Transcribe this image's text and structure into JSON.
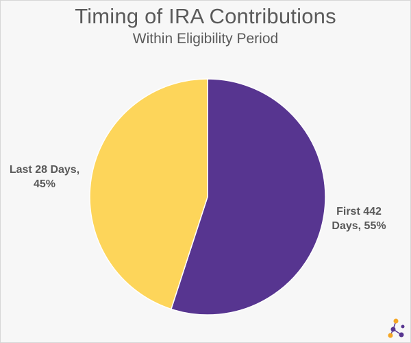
{
  "chart_data": {
    "type": "pie",
    "title": "Timing of IRA Contributions",
    "subtitle": "Within Eligibility Period",
    "slices": [
      {
        "label_line1": "First 442",
        "label_line2": "Days, 55%",
        "value": 55,
        "color": "#573590"
      },
      {
        "label_line1": "Last 28 Days,",
        "label_line2": "45%",
        "value": 45,
        "color": "#fdd55a"
      }
    ],
    "start_angle_deg": 0,
    "direction": "clockwise",
    "legend": "none"
  },
  "logo": {
    "icon": "network-nodes-icon",
    "colors": [
      "#f5a623",
      "#573590"
    ]
  }
}
